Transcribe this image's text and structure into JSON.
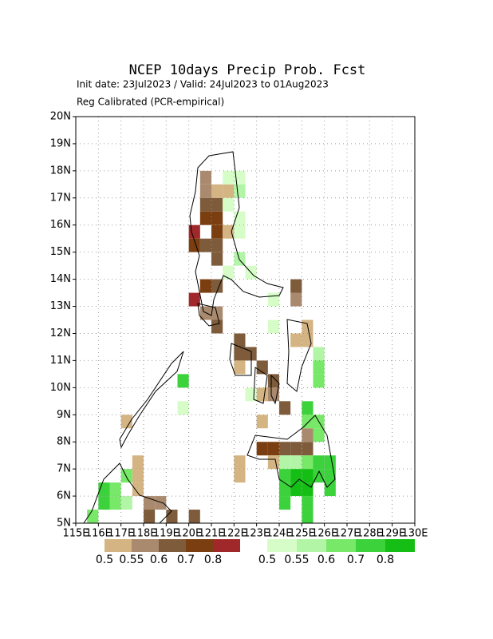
{
  "chart_data": {
    "type": "grid-map",
    "title": "NCEP 10days Precip Prob. Fcst",
    "subtitle": "Init date: 23Jul2023 / Valid: 24Jul2023 to 01Aug2023",
    "note": "Reg Calibrated (PCR-empirical)",
    "xlim": [
      115,
      130
    ],
    "ylim": [
      5,
      20
    ],
    "xticks": [
      {
        "value": 115,
        "label": "115E"
      },
      {
        "value": 116,
        "label": "116E"
      },
      {
        "value": 117,
        "label": "117E"
      },
      {
        "value": 118,
        "label": "118E"
      },
      {
        "value": 119,
        "label": "119E"
      },
      {
        "value": 120,
        "label": "120E"
      },
      {
        "value": 121,
        "label": "121E"
      },
      {
        "value": 122,
        "label": "122E"
      },
      {
        "value": 123,
        "label": "123E"
      },
      {
        "value": 124,
        "label": "124E"
      },
      {
        "value": 125,
        "label": "125E"
      },
      {
        "value": 126,
        "label": "126E"
      },
      {
        "value": 127,
        "label": "127E"
      },
      {
        "value": 128,
        "label": "128E"
      },
      {
        "value": 129,
        "label": "129E"
      },
      {
        "value": 130,
        "label": "130E"
      }
    ],
    "yticks": [
      {
        "value": 5,
        "label": "5N"
      },
      {
        "value": 6,
        "label": "6N"
      },
      {
        "value": 7,
        "label": "7N"
      },
      {
        "value": 8,
        "label": "8N"
      },
      {
        "value": 9,
        "label": "9N"
      },
      {
        "value": 10,
        "label": "10N"
      },
      {
        "value": 11,
        "label": "11N"
      },
      {
        "value": 12,
        "label": "12N"
      },
      {
        "value": 13,
        "label": "13N"
      },
      {
        "value": 14,
        "label": "14N"
      },
      {
        "value": 15,
        "label": "15N"
      },
      {
        "value": 16,
        "label": "16N"
      },
      {
        "value": 17,
        "label": "17N"
      },
      {
        "value": 18,
        "label": "18N"
      },
      {
        "value": 19,
        "label": "19N"
      },
      {
        "value": 20,
        "label": "20N"
      }
    ],
    "grid": true,
    "dry": {
      "colors": [
        "#d4b483",
        "#a98a6e",
        "#7d5b3b",
        "#7a3e10",
        "#a0282a"
      ],
      "ticks": [
        0.5,
        0.55,
        0.6,
        0.7,
        0.8
      ],
      "cells": [
        [
          120.5,
          17.5,
          0.57
        ],
        [
          120.5,
          17,
          0.57
        ],
        [
          120.5,
          16.5,
          0.65
        ],
        [
          120.5,
          16,
          0.75
        ],
        [
          121,
          16,
          0.75
        ],
        [
          121,
          16.5,
          0.65
        ],
        [
          121,
          17,
          0.52
        ],
        [
          121.5,
          17,
          0.52
        ],
        [
          121,
          15.5,
          0.75
        ],
        [
          121.5,
          15.5,
          0.52
        ],
        [
          120,
          15.5,
          0.85
        ],
        [
          120,
          15,
          0.75
        ],
        [
          120.5,
          15,
          0.65
        ],
        [
          121,
          15,
          0.65
        ],
        [
          121,
          14.5,
          0.65
        ],
        [
          120.5,
          13.5,
          0.75
        ],
        [
          121,
          13.5,
          0.65
        ],
        [
          120,
          13,
          0.85
        ],
        [
          120.5,
          12.5,
          0.57
        ],
        [
          121,
          12.5,
          0.57
        ],
        [
          121,
          12,
          0.65
        ],
        [
          122,
          11,
          0.65
        ],
        [
          122,
          11.5,
          0.65
        ],
        [
          122.5,
          11,
          0.65
        ],
        [
          122,
          10.5,
          0.52
        ],
        [
          123,
          10.5,
          0.65
        ],
        [
          123.5,
          10,
          0.65
        ],
        [
          123,
          9.5,
          0.52
        ],
        [
          123.5,
          9.5,
          0.57
        ],
        [
          124,
          9,
          0.65
        ],
        [
          123,
          8.5,
          0.52
        ],
        [
          124.5,
          13,
          0.57
        ],
        [
          124.5,
          13.5,
          0.65
        ],
        [
          125,
          12,
          0.52
        ],
        [
          125,
          11.5,
          0.52
        ],
        [
          124.5,
          11.5,
          0.52
        ],
        [
          123,
          7.5,
          0.75
        ],
        [
          123.5,
          7.5,
          0.75
        ],
        [
          124,
          7.5,
          0.65
        ],
        [
          124.5,
          7.5,
          0.65
        ],
        [
          125,
          7.5,
          0.65
        ],
        [
          125,
          8,
          0.57
        ],
        [
          123.5,
          7,
          0.52
        ],
        [
          122,
          7,
          0.52
        ],
        [
          122,
          6.5,
          0.52
        ],
        [
          117.5,
          6,
          0.52
        ],
        [
          117.5,
          6.5,
          0.52
        ],
        [
          117.5,
          7,
          0.52
        ],
        [
          118,
          5.5,
          0.57
        ],
        [
          118.5,
          5.5,
          0.57
        ],
        [
          119,
          5,
          0.65
        ],
        [
          118,
          5,
          0.65
        ],
        [
          120,
          5,
          0.65
        ],
        [
          117,
          8.5,
          0.52
        ]
      ]
    },
    "wet": {
      "colors": [
        "#d6fdc8",
        "#b2f5a6",
        "#78e868",
        "#3cd23c",
        "#14be14"
      ],
      "ticks": [
        0.5,
        0.55,
        0.6,
        0.7,
        0.8
      ],
      "cells": [
        [
          121.5,
          17.5,
          0.52
        ],
        [
          122,
          17.5,
          0.52
        ],
        [
          122,
          17,
          0.57
        ],
        [
          121.5,
          16.5,
          0.52
        ],
        [
          122,
          16,
          0.52
        ],
        [
          122,
          15.5,
          0.52
        ],
        [
          122,
          14.5,
          0.57
        ],
        [
          122.5,
          14,
          0.52
        ],
        [
          121.5,
          14,
          0.52
        ],
        [
          123.5,
          13,
          0.52
        ],
        [
          123.5,
          12,
          0.52
        ],
        [
          125.5,
          11,
          0.57
        ],
        [
          125.5,
          10.5,
          0.65
        ],
        [
          125.5,
          10,
          0.65
        ],
        [
          119.5,
          10,
          0.75
        ],
        [
          119.5,
          9,
          0.52
        ],
        [
          122.5,
          9.5,
          0.52
        ],
        [
          125,
          9,
          0.75
        ],
        [
          125,
          8.5,
          0.65
        ],
        [
          125.5,
          8.5,
          0.65
        ],
        [
          125.5,
          8,
          0.65
        ],
        [
          124,
          7,
          0.57
        ],
        [
          124.5,
          7,
          0.57
        ],
        [
          125,
          7,
          0.65
        ],
        [
          125.5,
          7,
          0.75
        ],
        [
          126,
          7,
          0.75
        ],
        [
          124,
          6.5,
          0.75
        ],
        [
          124.5,
          6.5,
          0.85
        ],
        [
          125,
          6.5,
          0.85
        ],
        [
          125.5,
          6.5,
          0.75
        ],
        [
          126,
          6.5,
          0.75
        ],
        [
          124,
          6,
          0.75
        ],
        [
          124.5,
          6,
          0.85
        ],
        [
          125,
          6,
          0.85
        ],
        [
          124,
          5.5,
          0.75
        ],
        [
          125,
          5.5,
          0.75
        ],
        [
          125,
          5,
          0.75
        ],
        [
          126,
          6,
          0.75
        ],
        [
          116.5,
          6,
          0.65
        ],
        [
          116.5,
          5.5,
          0.65
        ],
        [
          116,
          5.5,
          0.75
        ],
        [
          116,
          6,
          0.75
        ],
        [
          117,
          6.5,
          0.65
        ],
        [
          117,
          5.5,
          0.57
        ],
        [
          115.5,
          5,
          0.65
        ]
      ]
    }
  }
}
